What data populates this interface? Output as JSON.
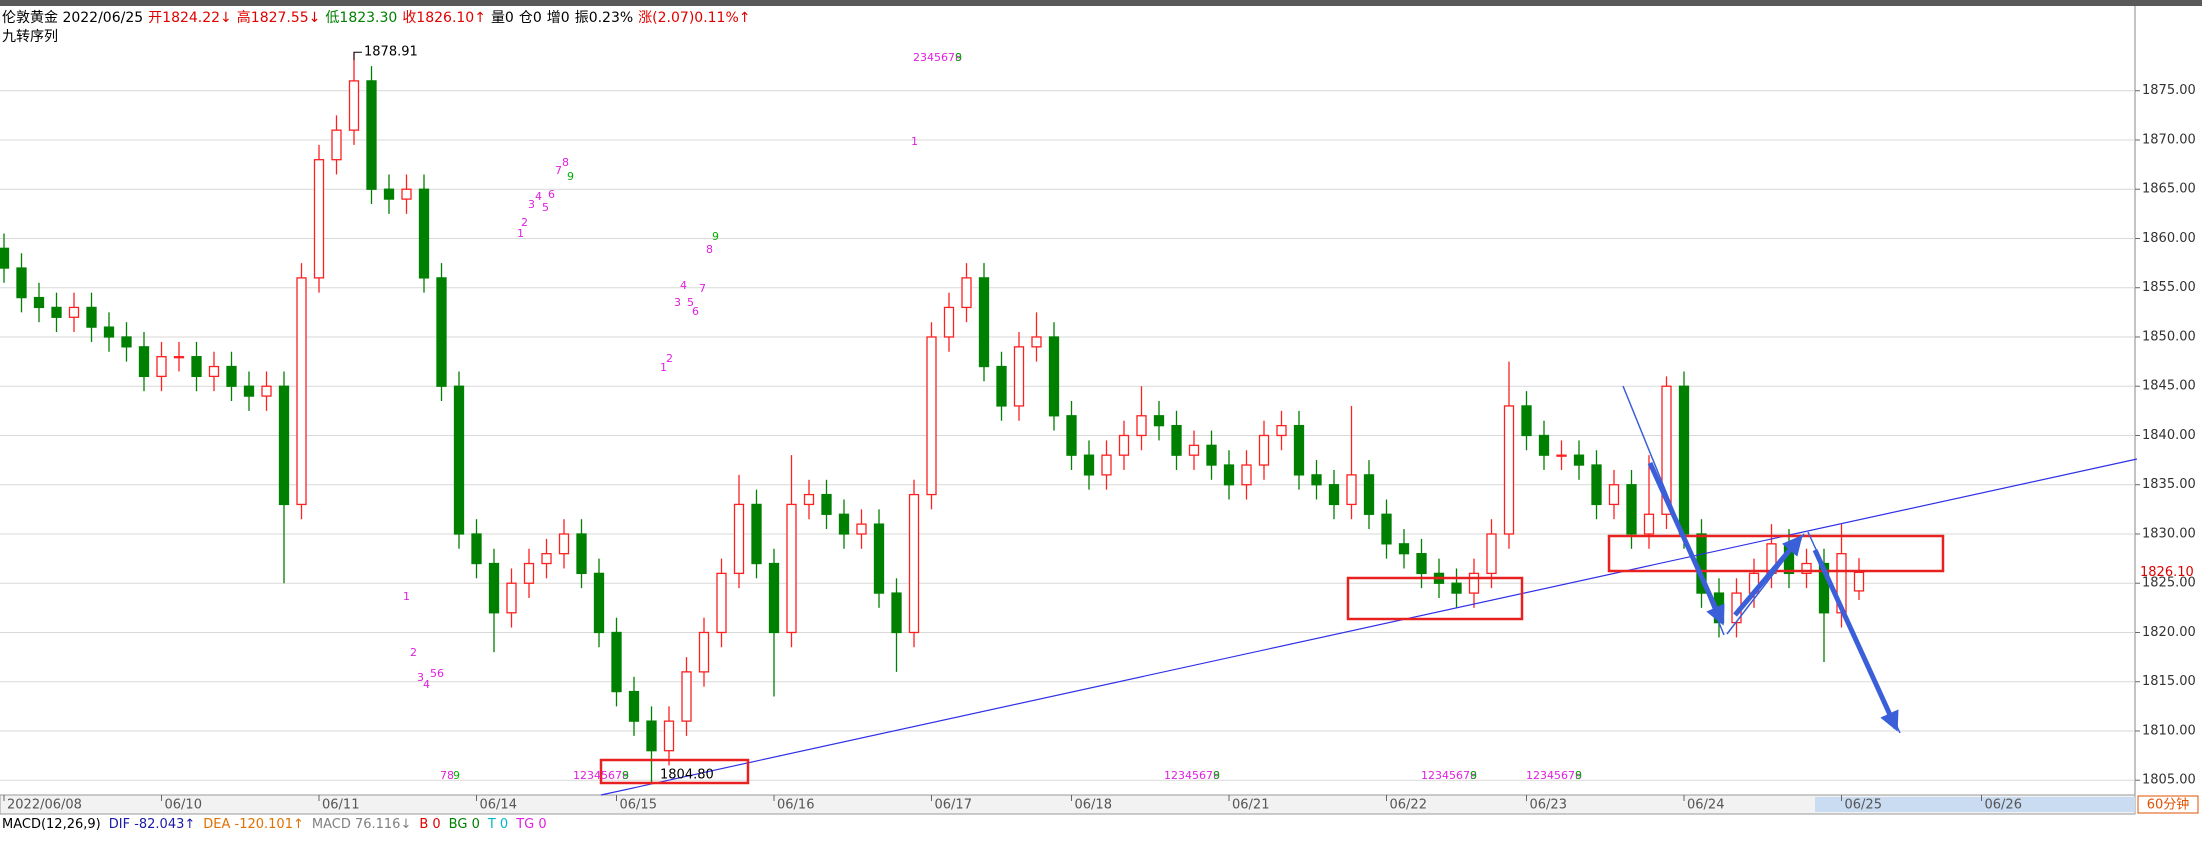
{
  "chart_data": {
    "type": "candlestick",
    "title_segments": [
      {
        "text": "伦敦黄金 2022/06/25",
        "color": "#000000"
      },
      {
        "text": "开1824.22↓",
        "color": "#e00000"
      },
      {
        "text": "高1827.55↓",
        "color": "#e00000"
      },
      {
        "text": "低1823.30",
        "color": "#008000"
      },
      {
        "text": "收1826.10↑",
        "color": "#e00000"
      },
      {
        "text": "量0",
        "color": "#000000"
      },
      {
        "text": "仓0",
        "color": "#000000"
      },
      {
        "text": "增0",
        "color": "#000000"
      },
      {
        "text": "振0.23%",
        "color": "#000000"
      },
      {
        "text": "涨(2.07)0.11%↑",
        "color": "#e00000"
      }
    ],
    "subtitle": "九转序列",
    "categories": [
      "2022/06/08",
      null,
      null,
      null,
      null,
      null,
      null,
      null,
      null,
      "06/10",
      null,
      null,
      null,
      null,
      null,
      null,
      null,
      null,
      "06/11",
      null,
      null,
      null,
      null,
      null,
      null,
      null,
      null,
      "06/14",
      null,
      null,
      null,
      null,
      null,
      null,
      null,
      "06/15",
      null,
      null,
      null,
      null,
      null,
      null,
      null,
      null,
      "06/16",
      null,
      null,
      null,
      null,
      null,
      null,
      null,
      null,
      "06/17",
      null,
      null,
      null,
      null,
      null,
      null,
      null,
      "06/18",
      null,
      null,
      null,
      null,
      null,
      null,
      null,
      null,
      "06/21",
      null,
      null,
      null,
      null,
      null,
      null,
      null,
      null,
      "06/22",
      null,
      null,
      null,
      null,
      null,
      null,
      null,
      "06/23",
      null,
      null,
      null,
      null,
      null,
      null,
      null,
      null,
      "06/24",
      null,
      null,
      null,
      null,
      null,
      null,
      null,
      null,
      "06/25",
      null,
      null,
      null,
      null,
      null,
      null,
      null,
      "06/26"
    ],
    "open": [
      1859,
      1857,
      1854,
      1853,
      1852,
      1853,
      1851,
      1850,
      1849,
      1846,
      1848,
      1848,
      1846,
      1847,
      1845,
      1844,
      1845,
      1833,
      1856,
      1868,
      1871,
      1876,
      1865,
      1864,
      1865,
      1856,
      1845,
      1830,
      1827,
      1822,
      1825,
      1827,
      1828,
      1830,
      1826,
      1820,
      1814,
      1811,
      1808,
      1811,
      1816,
      1820,
      1826,
      1833,
      1827,
      1820,
      1833,
      1834,
      1832,
      1830,
      1831,
      1824,
      1820,
      1834,
      1850,
      1853,
      1856,
      1847,
      1843,
      1849,
      1850,
      1842,
      1838,
      1836,
      1838,
      1840,
      1842,
      1841,
      1838,
      1839,
      1837,
      1835,
      1837,
      1840,
      1841,
      1836,
      1835,
      1833,
      1836,
      1832,
      1829,
      1828,
      1826,
      1825,
      1824,
      1826,
      1830,
      1843,
      1840,
      1838,
      1838,
      1837,
      1833,
      1835,
      1830,
      1832,
      1845,
      1830,
      1824,
      1821,
      1824,
      1826,
      1829,
      1826,
      1827,
      1822,
      1824.22,
      null,
      null,
      null,
      null,
      null,
      null,
      null
    ],
    "high": [
      1860.5,
      1858.5,
      1855.5,
      1854.5,
      1854.5,
      1854.5,
      1852.5,
      1851.5,
      1850.5,
      1849.5,
      1849.5,
      1849.5,
      1848.5,
      1848.5,
      1846.5,
      1846.5,
      1846.5,
      1857.5,
      1869.5,
      1872.5,
      1878.91,
      1877.5,
      1866.5,
      1866.5,
      1866.5,
      1857.5,
      1846.5,
      1831.5,
      1828.5,
      1826.5,
      1828.5,
      1829.5,
      1831.5,
      1831.5,
      1827.5,
      1821.5,
      1815.5,
      1812.5,
      1812.5,
      1817.5,
      1821.5,
      1827.5,
      1836,
      1834.5,
      1828.5,
      1838,
      1835.5,
      1835.5,
      1833.5,
      1832.5,
      1832.5,
      1825.5,
      1835.5,
      1851.5,
      1854.5,
      1857.5,
      1857.5,
      1848.5,
      1850.5,
      1852.5,
      1851.5,
      1843.5,
      1839.5,
      1839.5,
      1841.5,
      1845,
      1843.5,
      1842.5,
      1840.5,
      1840.5,
      1838.5,
      1838.5,
      1841.5,
      1842.5,
      1842.5,
      1837.5,
      1836.5,
      1843,
      1837.5,
      1833.5,
      1830.5,
      1829.5,
      1827.5,
      1826.5,
      1827.5,
      1831.5,
      1847.5,
      1844.5,
      1841.5,
      1839.5,
      1839.5,
      1838.5,
      1836.5,
      1836.5,
      1838,
      1846,
      1846.5,
      1831.5,
      1825.5,
      1825.5,
      1827.5,
      1831,
      1830.5,
      1828.5,
      1828.5,
      1831,
      1827.55,
      null,
      null,
      null,
      null,
      null,
      null,
      null
    ],
    "low": [
      1855.5,
      1852.5,
      1851.5,
      1850.5,
      1850.5,
      1849.5,
      1848.5,
      1847.5,
      1844.5,
      1844.5,
      1846.5,
      1844.5,
      1844.5,
      1843.5,
      1842.5,
      1842.5,
      1825,
      1831.5,
      1854.5,
      1866.5,
      1869.5,
      1863.5,
      1862.5,
      1862.5,
      1854.5,
      1843.5,
      1828.5,
      1825.5,
      1818,
      1820.5,
      1823.5,
      1825.5,
      1826.5,
      1824.5,
      1818.5,
      1812.5,
      1809.5,
      1804.8,
      1806.5,
      1809.5,
      1814.5,
      1818.5,
      1824.5,
      1825.5,
      1813.5,
      1818.5,
      1831.5,
      1830.5,
      1828.5,
      1828.5,
      1822.5,
      1816,
      1818.5,
      1832.5,
      1848.5,
      1851.5,
      1845.5,
      1841.5,
      1841.5,
      1847.5,
      1840.5,
      1836.5,
      1834.5,
      1834.5,
      1836.5,
      1838.5,
      1839.5,
      1836.5,
      1836.5,
      1835.5,
      1833.5,
      1833.5,
      1835.5,
      1838.5,
      1834.5,
      1833.5,
      1831.5,
      1831.5,
      1830.5,
      1827.5,
      1826.5,
      1824.5,
      1823.5,
      1822.5,
      1822.5,
      1824.5,
      1828.5,
      1838.5,
      1836.5,
      1836.5,
      1835.5,
      1831.5,
      1831.5,
      1828.5,
      1828.5,
      1830.5,
      1828.5,
      1822.5,
      1819.5,
      1819.5,
      1822.5,
      1824.5,
      1824.5,
      1824.5,
      1817,
      1820.5,
      1823.3,
      null,
      null,
      null,
      null,
      null,
      null,
      null
    ],
    "close": [
      1857,
      1854,
      1853,
      1852,
      1853,
      1851,
      1850,
      1849,
      1846,
      1848,
      1848,
      1846,
      1847,
      1845,
      1844,
      1845,
      1833,
      1856,
      1868,
      1871,
      1876,
      1865,
      1864,
      1865,
      1856,
      1845,
      1830,
      1827,
      1822,
      1825,
      1827,
      1828,
      1830,
      1826,
      1820,
      1814,
      1811,
      1808,
      1811,
      1816,
      1820,
      1826,
      1833,
      1827,
      1820,
      1833,
      1834,
      1832,
      1830,
      1831,
      1824,
      1820,
      1834,
      1850,
      1853,
      1856,
      1847,
      1843,
      1849,
      1850,
      1842,
      1838,
      1836,
      1838,
      1840,
      1842,
      1841,
      1838,
      1839,
      1837,
      1835,
      1837,
      1840,
      1841,
      1836,
      1835,
      1833,
      1836,
      1832,
      1829,
      1828,
      1826,
      1825,
      1824,
      1826,
      1830,
      1843,
      1840,
      1838,
      1838,
      1837,
      1833,
      1835,
      1830,
      1832,
      1845,
      1830,
      1824,
      1821,
      1824,
      1826,
      1829,
      1826,
      1827,
      1822,
      1828,
      1826.1,
      null,
      null,
      null,
      null,
      null,
      null,
      null
    ],
    "up_color": "#ff2020",
    "down_color": "#008000",
    "ylim": [
      1803.5,
      1883.4
    ],
    "yticks": [
      {
        "value": 1805,
        "label": "1805.00"
      },
      {
        "value": 1810,
        "label": "1810.00"
      },
      {
        "value": 1815,
        "label": "1815.00"
      },
      {
        "value": 1820,
        "label": "1820.00"
      },
      {
        "value": 1825,
        "label": "1825.00"
      },
      {
        "value": 1830,
        "label": "1830.00"
      },
      {
        "value": 1835,
        "label": "1835.00"
      },
      {
        "value": 1840,
        "label": "1840.00"
      },
      {
        "value": 1845,
        "label": "1845.00"
      },
      {
        "value": 1850,
        "label": "1850.00"
      },
      {
        "value": 1855,
        "label": "1855.00"
      },
      {
        "value": 1860,
        "label": "1860.00"
      },
      {
        "value": 1865,
        "label": "1865.00"
      },
      {
        "value": 1870,
        "label": "1870.00"
      },
      {
        "value": 1875,
        "label": "1875.00"
      }
    ],
    "grid": true,
    "high_annotation": 1878.91,
    "low_annotation": {
      "value": 1804.8,
      "label": "1804.80"
    },
    "last_price": {
      "value": 1826.1,
      "label": "1826.10"
    },
    "period": "60分钟",
    "signals": [
      {
        "text": "2345678",
        "color": "#e020e0"
      },
      {
        "text": "9",
        "color": "#00b000"
      },
      {
        "text": "1",
        "color": "#e020e0"
      },
      {
        "text": "1",
        "color": "#e020e0"
      },
      {
        "text": "2",
        "color": "#e020e0"
      },
      {
        "text": "3",
        "color": "#e020e0"
      },
      {
        "text": "4",
        "color": "#e020e0"
      },
      {
        "text": "5",
        "color": "#e020e0"
      },
      {
        "text": "6",
        "color": "#e020e0"
      },
      {
        "text": "7",
        "color": "#e020e0"
      },
      {
        "text": "8",
        "color": "#e020e0"
      },
      {
        "text": "9",
        "color": "#00b000"
      },
      {
        "text": "1",
        "color": "#e020e0"
      },
      {
        "text": "2",
        "color": "#e020e0"
      },
      {
        "text": "3",
        "color": "#e020e0"
      },
      {
        "text": "4",
        "color": "#e020e0"
      },
      {
        "text": "5",
        "color": "#e020e0"
      },
      {
        "text": "6",
        "color": "#e020e0"
      },
      {
        "text": "7",
        "color": "#e020e0"
      },
      {
        "text": "8",
        "color": "#e020e0"
      },
      {
        "text": "9",
        "color": "#00b000"
      },
      {
        "text": "1",
        "color": "#e020e0"
      },
      {
        "text": "2",
        "color": "#e020e0"
      },
      {
        "text": "3",
        "color": "#e020e0"
      },
      {
        "text": "4",
        "color": "#e020e0"
      },
      {
        "text": "56",
        "color": "#e020e0"
      },
      {
        "text": "78",
        "color": "#e020e0"
      },
      {
        "text": "9",
        "color": "#00b000"
      },
      {
        "text": "12345678",
        "color": "#e020e0"
      },
      {
        "text": "9",
        "color": "#00b000"
      },
      {
        "text": "12345678",
        "color": "#e020e0"
      },
      {
        "text": "9",
        "color": "#00b000"
      },
      {
        "text": "12345678",
        "color": "#e020e0"
      },
      {
        "text": "9",
        "color": "#00b000"
      },
      {
        "text": "12345678",
        "color": "#e020e0"
      },
      {
        "text": "9",
        "color": "#00b000"
      }
    ],
    "indicator_segments": [
      {
        "text": "MACD(12,26,9)",
        "color": "#000000"
      },
      {
        "text": "DIF -82.043↑",
        "color": "#1a1aa8"
      },
      {
        "text": "DEA -120.101↑",
        "color": "#e07000"
      },
      {
        "text": "MACD 76.116↓",
        "color": "#808080"
      },
      {
        "text": "B 0",
        "color": "#e00000"
      },
      {
        "text": "BG 0",
        "color": "#008000"
      },
      {
        "text": "T 0",
        "color": "#00b8c8"
      },
      {
        "text": "TG 0",
        "color": "#e020e0"
      }
    ]
  }
}
